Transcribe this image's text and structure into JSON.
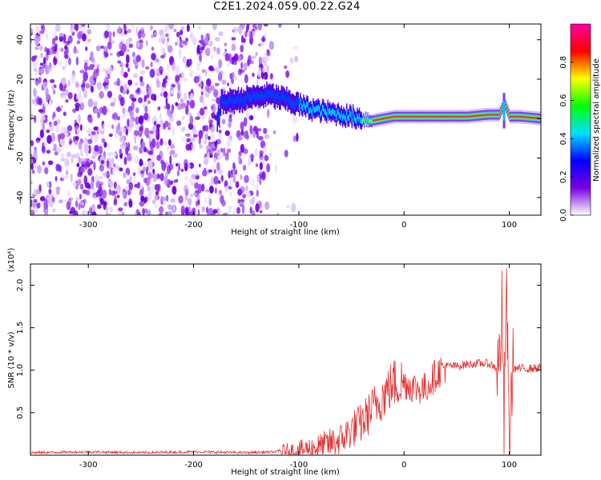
{
  "title": "C2E1.2024.059.00.22.G24",
  "chart_data": [
    {
      "type": "heatmap",
      "xlabel": "Height of straight line (km)",
      "ylabel": "Frequency (Hz)",
      "xlim": [
        -355,
        130
      ],
      "ylim": [
        -49,
        48
      ],
      "xticks": [
        -300,
        -200,
        -100,
        0,
        100
      ],
      "xtick_labels": [
        "-300",
        "-200",
        "-100",
        "0",
        "100"
      ],
      "yticks": [
        -40,
        -20,
        0,
        20,
        40
      ],
      "ytick_labels": [
        "-40",
        "-20",
        "0",
        "20",
        "40"
      ],
      "colorbar": {
        "label": "Normalized spectral amplitude",
        "range": [
          0.0,
          1.0
        ],
        "ticks": [
          0.0,
          0.2,
          0.4,
          0.6,
          0.8
        ],
        "tick_labels": [
          "0.0",
          "0.2",
          "0.4",
          "0.6",
          "0.8"
        ],
        "colors": [
          "#ffffff",
          "#7a00e0",
          "#0000ff",
          "#00e0ff",
          "#00ff00",
          "#ffff00",
          "#ff0000",
          "#ff00a0"
        ]
      },
      "ridge": {
        "x": [
          -175,
          -130,
          -115,
          -100,
          -90,
          -80,
          -70,
          -60,
          -50,
          -40,
          -30,
          -20,
          -10,
          0,
          20,
          40,
          60,
          80,
          90,
          95,
          100,
          110,
          130
        ],
        "y": [
          8,
          12,
          10,
          7,
          5,
          4,
          3,
          2,
          1,
          0,
          -1,
          0,
          1,
          1,
          1,
          1,
          1,
          2,
          2,
          8,
          1,
          1,
          0
        ]
      },
      "grid": false
    },
    {
      "type": "line",
      "xlabel": "Height of straight line (km)",
      "ylabel": "SNR (10 * v/v)",
      "y_multiplier_label": "(x10⁴)",
      "xlim": [
        -355,
        130
      ],
      "ylim": [
        0,
        2.25
      ],
      "xticks": [
        -300,
        -200,
        -100,
        0,
        100
      ],
      "xtick_labels": [
        "-300",
        "-200",
        "-100",
        "0",
        "100"
      ],
      "yticks": [
        0.5,
        1.0,
        1.5,
        2.0
      ],
      "ytick_labels": [
        "0.5",
        "1.0",
        "1.5",
        "2.0"
      ],
      "series": [
        {
          "color": "#e83030",
          "x": [
            -355,
            -300,
            -250,
            -200,
            -150,
            -120,
            -100,
            -80,
            -60,
            -50,
            -40,
            -30,
            -20,
            -10,
            0,
            10,
            20,
            30,
            40,
            50,
            60,
            70,
            80,
            85,
            90,
            93,
            95,
            97,
            100,
            103,
            110,
            120,
            130
          ],
          "y": [
            0.03,
            0.04,
            0.03,
            0.04,
            0.03,
            0.04,
            0.05,
            0.1,
            0.18,
            0.3,
            0.38,
            0.55,
            0.7,
            0.85,
            0.85,
            0.8,
            0.78,
            0.95,
            1.05,
            1.05,
            1.07,
            1.08,
            1.08,
            1.05,
            1.0,
            1.7,
            0.3,
            2.1,
            0.1,
            1.02,
            1.02,
            1.02,
            1.03
          ]
        }
      ],
      "grid": false
    }
  ]
}
